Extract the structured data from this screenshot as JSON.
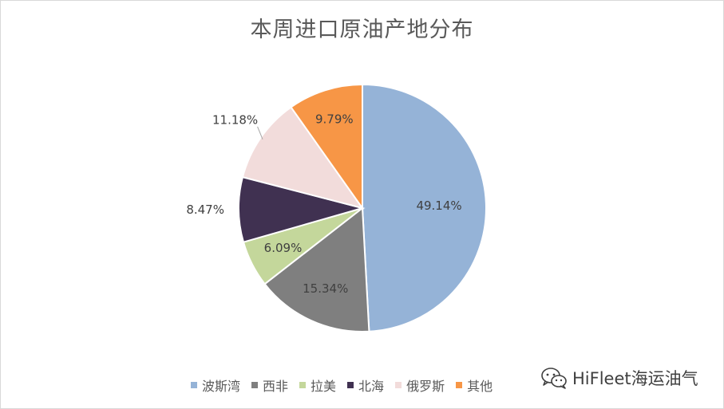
{
  "chart_data": {
    "type": "pie",
    "title": "本周进口原油产地分布",
    "categories": [
      "波斯湾",
      "西非",
      "拉美",
      "北海",
      "俄罗斯",
      "其他"
    ],
    "values": [
      49.14,
      15.34,
      6.09,
      8.47,
      11.18,
      9.79
    ],
    "labels": [
      "49.14%",
      "15.34%",
      "6.09%",
      "8.47%",
      "11.18%",
      "9.79%"
    ],
    "colors": [
      "#95b3d7",
      "#7f7f7f",
      "#c4d79b",
      "#403151",
      "#f2dcdb",
      "#f79646"
    ],
    "legend_position": "bottom"
  },
  "watermark": {
    "text": "HiFleet海运油气",
    "icon": "wechat-icon"
  }
}
